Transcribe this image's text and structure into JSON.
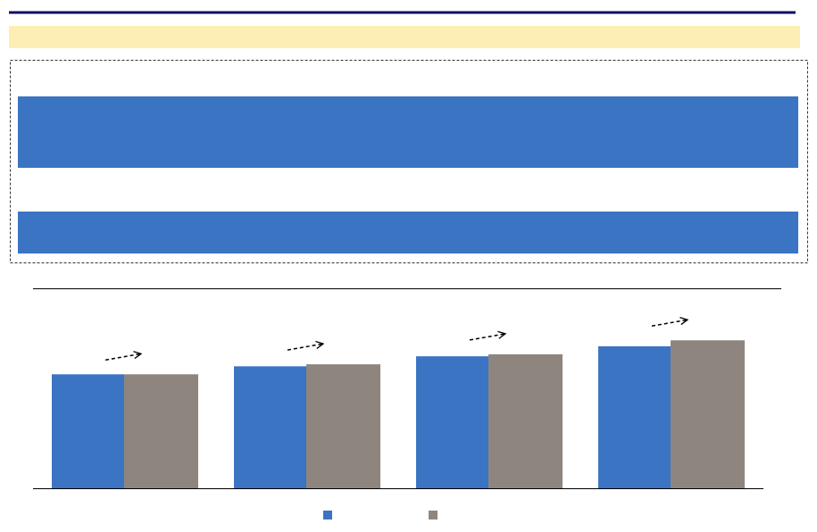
{
  "chart_data": {
    "type": "bar",
    "categories": [
      null,
      null,
      null,
      null
    ],
    "series": [
      {
        "color": "#3b74c3",
        "values": [
          57,
          61,
          66,
          71
        ]
      },
      {
        "color": "#8e867e",
        "values": [
          57,
          62,
          67,
          74
        ]
      }
    ],
    "ylim": [
      0,
      100
    ]
  }
}
